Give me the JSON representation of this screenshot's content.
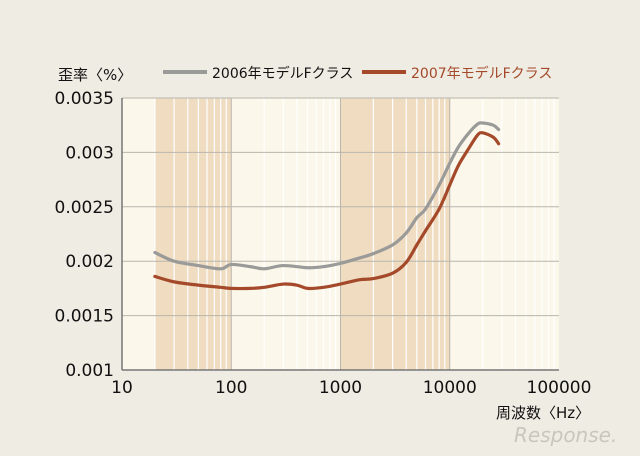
{
  "watermark": "Response.",
  "chart_data": {
    "type": "line",
    "title": "",
    "ylabel": "歪率〈%〉",
    "xlabel": "周波数〈Hz〉",
    "x_scale": "log",
    "xlim": [
      10,
      100000
    ],
    "ylim": [
      0.001,
      0.0035
    ],
    "x_ticks": [
      "10",
      "100",
      "1000",
      "10000",
      "100000"
    ],
    "y_ticks": [
      "0.0035",
      "0.003",
      "0.0025",
      "0.002",
      "0.0015",
      "0.001"
    ],
    "grid": true,
    "legend_position": "top",
    "shaded_bands": [
      [
        20,
        100
      ],
      [
        1000,
        10000
      ]
    ],
    "series": [
      {
        "name": "2006年モデルFクラス",
        "color": "#9a9a98",
        "x": [
          20,
          30,
          50,
          80,
          100,
          150,
          200,
          300,
          500,
          700,
          1000,
          1500,
          2000,
          3000,
          4000,
          5000,
          6000,
          8000,
          10000,
          12000,
          15000,
          18000,
          20000,
          25000,
          28000
        ],
        "values": [
          0.00208,
          0.002,
          0.00196,
          0.00193,
          0.00197,
          0.00195,
          0.00193,
          0.00196,
          0.00194,
          0.00195,
          0.00198,
          0.00203,
          0.00207,
          0.00215,
          0.00226,
          0.0024,
          0.00248,
          0.0027,
          0.0029,
          0.00305,
          0.00318,
          0.00326,
          0.00327,
          0.00325,
          0.00321
        ]
      },
      {
        "name": "2007年モデルFクラス",
        "color": "#a4492a",
        "x": [
          20,
          30,
          50,
          80,
          100,
          150,
          200,
          300,
          400,
          500,
          700,
          1000,
          1500,
          2000,
          3000,
          4000,
          5000,
          6000,
          8000,
          10000,
          12000,
          15000,
          18000,
          20000,
          25000,
          28000
        ],
        "values": [
          0.00186,
          0.00181,
          0.00178,
          0.00176,
          0.00175,
          0.00175,
          0.00176,
          0.00179,
          0.00178,
          0.00175,
          0.00176,
          0.00179,
          0.00183,
          0.00184,
          0.00189,
          0.00199,
          0.00215,
          0.00228,
          0.00248,
          0.0027,
          0.00288,
          0.00304,
          0.00316,
          0.00318,
          0.00314,
          0.00308
        ]
      }
    ]
  }
}
